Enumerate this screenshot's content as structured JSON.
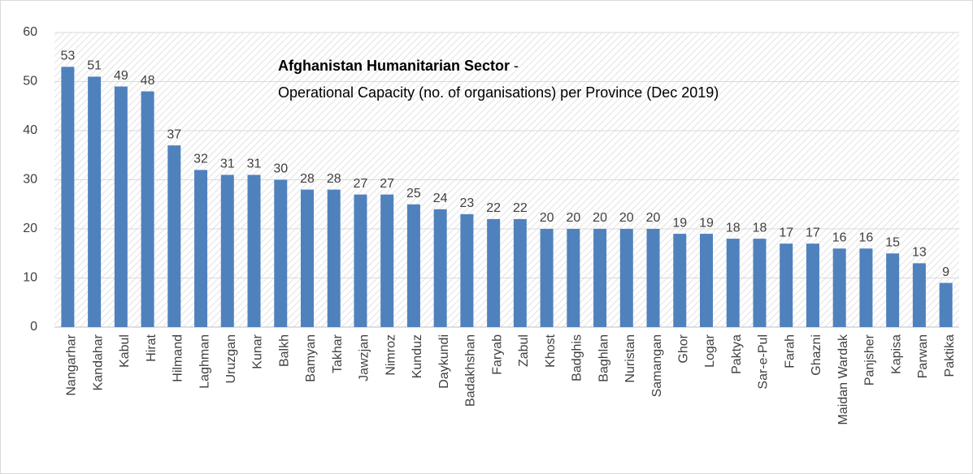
{
  "chart_data": {
    "type": "bar",
    "title": "Afghanistan Humanitarian Sector",
    "title_suffix": "-",
    "subtitle": "Operational Capacity (no. of organisations) per Province (Dec 2019)",
    "categories": [
      "Nangarhar",
      "Kandahar",
      "Kabul",
      "Hirat",
      "Hilmand",
      "Laghman",
      "Uruzgan",
      "Kunar",
      "Balkh",
      "Bamyan",
      "Takhar",
      "Jawzjan",
      "Nimroz",
      "Kunduz",
      "Daykundi",
      "Badakhshan",
      "Faryab",
      "Zabul",
      "Khost",
      "Badghis",
      "Baghlan",
      "Nuristan",
      "Samangan",
      "Ghor",
      "Logar",
      "Paktya",
      "Sar-e-Pul",
      "Farah",
      "Ghazni",
      "Maidan Wardak",
      "Panjsher",
      "Kapisa",
      "Parwan",
      "Paktika"
    ],
    "values": [
      53,
      51,
      49,
      48,
      37,
      32,
      31,
      31,
      30,
      28,
      28,
      27,
      27,
      25,
      24,
      23,
      22,
      22,
      20,
      20,
      20,
      20,
      20,
      19,
      19,
      18,
      18,
      17,
      17,
      16,
      16,
      15,
      13,
      9
    ],
    "color": "#4f81bd",
    "ylim": [
      0,
      60
    ],
    "yticks": [
      0,
      10,
      20,
      30,
      40,
      50,
      60
    ],
    "grid": true
  }
}
